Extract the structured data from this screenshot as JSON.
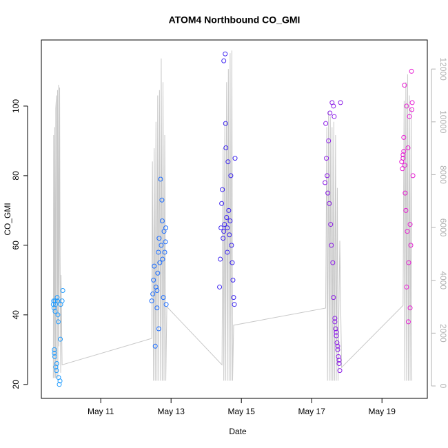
{
  "chart_data": {
    "type": "scatter",
    "title": "ATOM4 Northbound CO_GMI",
    "xlabel": "Date",
    "ylabel": "CO_GMI",
    "xlim": [
      9.31,
      20.29
    ],
    "ylim": [
      16,
      119
    ],
    "y2lim": [
      -470,
      13100
    ],
    "xticks": [
      {
        "value": 11,
        "label": "May 11"
      },
      {
        "value": 13,
        "label": "May 13"
      },
      {
        "value": 15,
        "label": "May 15"
      },
      {
        "value": 17,
        "label": "May 17"
      },
      {
        "value": 19,
        "label": "May 19"
      }
    ],
    "yticks": [
      20,
      40,
      60,
      80,
      100
    ],
    "y2ticks": [
      0,
      2000,
      4000,
      6000,
      8000,
      10000,
      12000
    ],
    "series": [
      {
        "type": "line",
        "axis": "y2",
        "color": "#c8c8c8",
        "x": [
          9.65,
          9.66,
          9.68,
          9.69,
          9.71,
          9.72,
          9.74,
          9.75,
          9.77,
          9.78,
          9.8,
          9.81,
          9.83,
          9.84,
          9.86,
          9.87,
          9.9,
          12.45,
          12.47,
          12.5,
          12.52,
          12.55,
          12.57,
          12.6,
          12.62,
          12.65,
          12.67,
          12.7,
          12.72,
          12.75,
          12.77,
          12.8,
          12.82,
          12.85,
          12.88,
          14.45,
          14.48,
          14.5,
          14.53,
          14.55,
          14.58,
          14.6,
          14.63,
          14.65,
          14.68,
          14.7,
          14.73,
          14.75,
          14.78,
          17.4,
          17.43,
          17.45,
          17.48,
          17.5,
          17.53,
          17.55,
          17.58,
          17.6,
          17.63,
          17.65,
          17.68,
          17.7,
          17.73,
          17.75,
          17.8,
          17.85,
          19.6,
          19.63,
          19.65,
          19.68,
          19.7,
          19.73,
          19.75,
          19.78,
          19.8,
          19.83,
          19.85
        ],
        "values": [
          300,
          9500,
          300,
          9800,
          300,
          10500,
          11000,
          300,
          11200,
          300,
          11400,
          1500,
          11300,
          5500,
          500,
          4200,
          800,
          1800,
          8500,
          200,
          9000,
          200,
          10000,
          200,
          11000,
          200,
          11200,
          200,
          12400,
          200,
          11500,
          200,
          9500,
          200,
          3000,
          800,
          9000,
          200,
          10000,
          200,
          11500,
          200,
          12000,
          200,
          12600,
          200,
          12700,
          200,
          2300,
          2950,
          9800,
          200,
          10400,
          200,
          10200,
          200,
          9800,
          200,
          10000,
          200,
          9500,
          200,
          7500,
          200,
          5500,
          700,
          3050,
          10800,
          200,
          11500,
          200,
          11800,
          200,
          11000,
          200,
          10500,
          200
        ]
      },
      {
        "color": "#1e9bff",
        "x": [
          9.65,
          9.66,
          9.67,
          9.68,
          9.69,
          9.7,
          9.71,
          9.72,
          9.74,
          9.75,
          9.76,
          9.77,
          9.78,
          9.8,
          9.82,
          9.84,
          9.86,
          9.9,
          9.92,
          9.7,
          9.68,
          9.79,
          9.85
        ],
        "values": [
          43,
          44,
          42,
          29,
          28,
          44,
          43,
          25,
          24,
          26,
          45,
          44,
          40,
          22,
          20,
          21,
          43,
          44,
          47,
          41,
          30,
          38,
          33
        ]
      },
      {
        "color": "#1a6cff",
        "x": [
          12.45,
          12.48,
          12.5,
          12.52,
          12.55,
          12.57,
          12.6,
          12.62,
          12.64,
          12.66,
          12.68,
          12.7,
          12.72,
          12.74,
          12.76,
          12.78,
          12.8,
          12.82,
          12.84,
          12.86,
          12.6,
          12.65,
          12.75,
          12.85
        ],
        "values": [
          44,
          46,
          50,
          54,
          31,
          48,
          47,
          52,
          58,
          62,
          55,
          79,
          60,
          73,
          56,
          45,
          64,
          58,
          61,
          43,
          42,
          36,
          67,
          65
        ]
      },
      {
        "color": "#3a22f0",
        "x": [
          14.38,
          14.4,
          14.42,
          14.44,
          14.46,
          14.48,
          14.5,
          14.52,
          14.54,
          14.56,
          14.58,
          14.6,
          14.62,
          14.64,
          14.66,
          14.68,
          14.7,
          14.72,
          14.74,
          14.76,
          14.78,
          14.8,
          14.82,
          14.5,
          14.55,
          14.6
        ],
        "values": [
          48,
          56,
          65,
          72,
          76,
          62,
          64,
          66,
          115,
          88,
          68,
          65,
          84,
          70,
          63,
          67,
          80,
          60,
          55,
          50,
          45,
          43,
          85,
          113,
          95,
          58
        ]
      },
      {
        "color": "#8a1ae6",
        "x": [
          17.38,
          17.4,
          17.42,
          17.44,
          17.46,
          17.48,
          17.5,
          17.52,
          17.54,
          17.56,
          17.58,
          17.6,
          17.62,
          17.64,
          17.66,
          17.68,
          17.7,
          17.72,
          17.74,
          17.76,
          17.78,
          17.8,
          17.82,
          17.62,
          17.66,
          17.7,
          17.74,
          17.78
        ],
        "values": [
          78,
          95,
          85,
          80,
          75,
          90,
          72,
          98,
          66,
          60,
          101,
          55,
          100,
          97,
          38,
          36,
          34,
          32,
          30,
          28,
          26,
          24,
          101,
          45,
          39,
          35,
          31,
          27
        ]
      },
      {
        "color": "#e61ad2",
        "x": [
          19.56,
          19.58,
          19.6,
          19.62,
          19.64,
          19.66,
          19.68,
          19.7,
          19.72,
          19.74,
          19.76,
          19.78,
          19.8,
          19.82,
          19.84,
          19.86,
          19.88,
          19.6,
          19.65,
          19.7,
          19.75,
          19.8,
          19.85,
          19.62
        ],
        "values": [
          84,
          82,
          86,
          91,
          106,
          75,
          70,
          100,
          64,
          88,
          55,
          97,
          42,
          60,
          110,
          101,
          80,
          85,
          83,
          48,
          38,
          66,
          99,
          87
        ]
      }
    ]
  }
}
